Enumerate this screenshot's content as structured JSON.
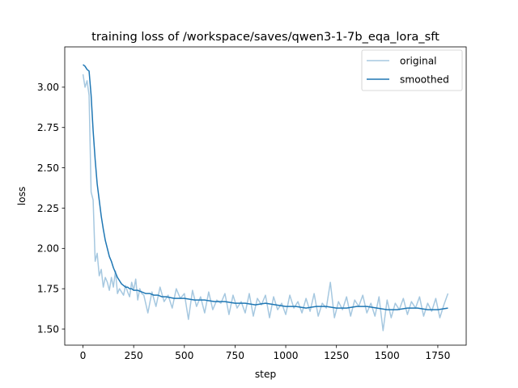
{
  "chart_data": {
    "type": "line",
    "title": "training loss of /workspace/saves/qwen3-1-7b_eqa_lora_sft",
    "xlabel": "step",
    "ylabel": "loss",
    "xlim": [
      -90,
      1890
    ],
    "ylim": [
      1.4,
      3.25
    ],
    "xticks": [
      0,
      250,
      500,
      750,
      1000,
      1250,
      1500,
      1750
    ],
    "xtick_labels": [
      "0",
      "250",
      "500",
      "750",
      "1000",
      "1250",
      "1500",
      "1750"
    ],
    "yticks": [
      1.5,
      1.75,
      2.0,
      2.25,
      2.5,
      2.75,
      3.0
    ],
    "ytick_labels": [
      "1.50",
      "1.75",
      "2.00",
      "2.25",
      "2.50",
      "2.75",
      "3.00"
    ],
    "grid": false,
    "legend_position": "top-right",
    "series": [
      {
        "name": "original",
        "color": "#a6c8e0",
        "x": [
          0,
          10,
          20,
          30,
          40,
          50,
          60,
          70,
          80,
          90,
          100,
          110,
          120,
          130,
          140,
          150,
          160,
          170,
          180,
          190,
          200,
          210,
          220,
          230,
          240,
          250,
          260,
          270,
          280,
          290,
          300,
          320,
          340,
          360,
          380,
          400,
          420,
          440,
          460,
          480,
          500,
          520,
          540,
          560,
          580,
          600,
          620,
          640,
          660,
          680,
          700,
          720,
          740,
          760,
          780,
          800,
          820,
          840,
          860,
          880,
          900,
          920,
          940,
          960,
          980,
          1000,
          1020,
          1040,
          1060,
          1080,
          1100,
          1120,
          1140,
          1160,
          1180,
          1200,
          1220,
          1240,
          1260,
          1280,
          1300,
          1320,
          1340,
          1360,
          1380,
          1400,
          1420,
          1440,
          1460,
          1480,
          1500,
          1520,
          1540,
          1560,
          1580,
          1600,
          1620,
          1640,
          1660,
          1680,
          1700,
          1720,
          1740,
          1760,
          1780,
          1800
        ],
        "y": [
          3.08,
          3.0,
          3.04,
          2.95,
          2.35,
          2.3,
          1.92,
          1.97,
          1.83,
          1.87,
          1.76,
          1.82,
          1.79,
          1.74,
          1.82,
          1.76,
          1.86,
          1.72,
          1.75,
          1.73,
          1.71,
          1.77,
          1.73,
          1.7,
          1.79,
          1.74,
          1.81,
          1.68,
          1.75,
          1.72,
          1.71,
          1.6,
          1.73,
          1.64,
          1.76,
          1.67,
          1.71,
          1.63,
          1.75,
          1.69,
          1.72,
          1.56,
          1.74,
          1.64,
          1.7,
          1.6,
          1.73,
          1.62,
          1.68,
          1.66,
          1.72,
          1.59,
          1.71,
          1.63,
          1.67,
          1.6,
          1.72,
          1.58,
          1.69,
          1.65,
          1.71,
          1.57,
          1.7,
          1.62,
          1.66,
          1.59,
          1.71,
          1.63,
          1.67,
          1.6,
          1.69,
          1.61,
          1.72,
          1.58,
          1.66,
          1.63,
          1.79,
          1.57,
          1.67,
          1.62,
          1.7,
          1.58,
          1.68,
          1.64,
          1.71,
          1.6,
          1.66,
          1.58,
          1.7,
          1.49,
          1.68,
          1.57,
          1.66,
          1.62,
          1.69,
          1.59,
          1.67,
          1.63,
          1.7,
          1.58,
          1.66,
          1.61,
          1.69,
          1.57,
          1.65,
          1.72
        ]
      },
      {
        "name": "smoothed",
        "color": "#1f77b4",
        "x": [
          0,
          10,
          20,
          30,
          40,
          50,
          60,
          70,
          80,
          90,
          100,
          110,
          120,
          130,
          140,
          150,
          160,
          170,
          180,
          190,
          200,
          210,
          220,
          230,
          240,
          250,
          270,
          290,
          310,
          330,
          350,
          370,
          390,
          410,
          450,
          500,
          550,
          600,
          650,
          700,
          750,
          800,
          850,
          900,
          950,
          1000,
          1050,
          1100,
          1150,
          1200,
          1250,
          1300,
          1350,
          1400,
          1450,
          1500,
          1550,
          1600,
          1650,
          1700,
          1750,
          1800
        ],
        "y": [
          3.14,
          3.13,
          3.11,
          3.1,
          2.95,
          2.73,
          2.55,
          2.4,
          2.3,
          2.2,
          2.12,
          2.05,
          2.0,
          1.95,
          1.92,
          1.88,
          1.85,
          1.82,
          1.8,
          1.78,
          1.77,
          1.76,
          1.76,
          1.75,
          1.75,
          1.74,
          1.74,
          1.73,
          1.72,
          1.72,
          1.71,
          1.71,
          1.7,
          1.7,
          1.69,
          1.69,
          1.68,
          1.68,
          1.67,
          1.67,
          1.66,
          1.66,
          1.65,
          1.66,
          1.65,
          1.64,
          1.64,
          1.63,
          1.64,
          1.64,
          1.63,
          1.63,
          1.64,
          1.64,
          1.63,
          1.62,
          1.62,
          1.63,
          1.63,
          1.62,
          1.62,
          1.63
        ]
      }
    ]
  }
}
